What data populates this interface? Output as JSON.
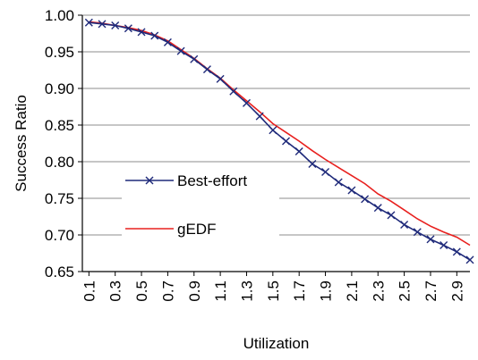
{
  "chart_data": {
    "type": "line",
    "title": "",
    "xlabel": "Utilization",
    "ylabel": "Success Ratio",
    "ylim": [
      0.65,
      1.0
    ],
    "xlim": [
      0.05,
      3.0
    ],
    "grid": "horizontal",
    "legend_position": "center-left",
    "y_ticks": [
      "0.65",
      "0.70",
      "0.75",
      "0.80",
      "0.85",
      "0.90",
      "0.95",
      "1.00"
    ],
    "x_ticks": [
      "0.1",
      "0.3",
      "0.5",
      "0.7",
      "0.9",
      "1.1",
      "1.3",
      "1.5",
      "1.7",
      "1.9",
      "2.1",
      "2.3",
      "2.5",
      "2.7",
      "2.9"
    ],
    "x": [
      0.1,
      0.2,
      0.3,
      0.4,
      0.5,
      0.6,
      0.7,
      0.8,
      0.9,
      1.0,
      1.1,
      1.2,
      1.3,
      1.4,
      1.5,
      1.6,
      1.7,
      1.8,
      1.9,
      2.0,
      2.1,
      2.2,
      2.3,
      2.4,
      2.5,
      2.6,
      2.7,
      2.8,
      2.9,
      3.0
    ],
    "series": [
      {
        "name": "Best-effort",
        "color": "#1f2a7a",
        "marker": "x",
        "values": [
          0.99,
          0.988,
          0.986,
          0.982,
          0.977,
          0.972,
          0.963,
          0.951,
          0.94,
          0.926,
          0.913,
          0.896,
          0.88,
          0.862,
          0.843,
          0.828,
          0.814,
          0.797,
          0.786,
          0.772,
          0.761,
          0.749,
          0.737,
          0.727,
          0.714,
          0.704,
          0.694,
          0.686,
          0.677,
          0.666
        ]
      },
      {
        "name": "gEDF",
        "color": "#e8201e",
        "marker": "none",
        "values": [
          0.991,
          0.989,
          0.986,
          0.983,
          0.979,
          0.973,
          0.965,
          0.953,
          0.941,
          0.927,
          0.914,
          0.898,
          0.883,
          0.868,
          0.852,
          0.84,
          0.828,
          0.815,
          0.803,
          0.792,
          0.781,
          0.77,
          0.756,
          0.746,
          0.734,
          0.722,
          0.712,
          0.704,
          0.697,
          0.686
        ]
      }
    ]
  }
}
